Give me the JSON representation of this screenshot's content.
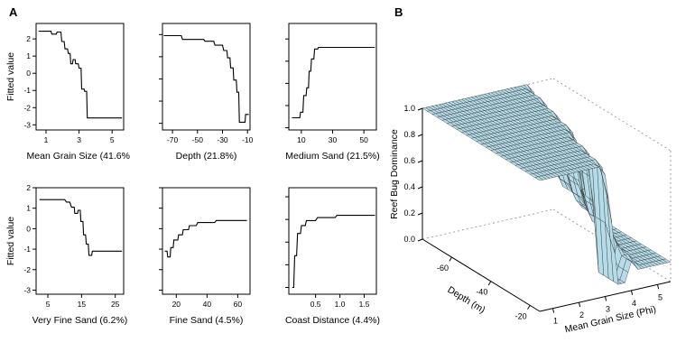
{
  "panel_labels": {
    "a": "A",
    "b": "B"
  },
  "chart_data": {
    "partial_plots": {
      "type": "line",
      "y_axis_title": "Fitted value",
      "plots": [
        {
          "xlabel": "Mean Grain Size (41.6%)",
          "xlim": [
            0.4,
            5.7
          ],
          "xticks": [
            1,
            3,
            5
          ],
          "xtick_labels": [
            "1",
            "3",
            "5"
          ],
          "ylim": [
            -3.3,
            2.9
          ],
          "yticks": [
            -3,
            -2,
            -1,
            0,
            1,
            2
          ],
          "ytick_labels": [
            "-3",
            "-2",
            "-1",
            "0",
            "1",
            "2"
          ],
          "show_y_axis_labels": true,
          "points": [
            [
              0.55,
              2.45
            ],
            [
              1.3,
              2.45
            ],
            [
              1.35,
              2.28
            ],
            [
              1.62,
              2.28
            ],
            [
              1.67,
              2.4
            ],
            [
              1.9,
              2.4
            ],
            [
              1.95,
              1.85
            ],
            [
              2.1,
              1.85
            ],
            [
              2.15,
              1.42
            ],
            [
              2.3,
              1.42
            ],
            [
              2.35,
              1.15
            ],
            [
              2.46,
              1.15
            ],
            [
              2.5,
              0.55
            ],
            [
              2.6,
              0.55
            ],
            [
              2.64,
              0.8
            ],
            [
              2.76,
              0.8
            ],
            [
              2.8,
              0.55
            ],
            [
              2.95,
              0.55
            ],
            [
              3.0,
              0.3
            ],
            [
              3.12,
              0.3
            ],
            [
              3.16,
              -0.92
            ],
            [
              3.3,
              -0.92
            ],
            [
              3.34,
              -1.05
            ],
            [
              3.46,
              -1.05
            ],
            [
              3.5,
              -2.6
            ],
            [
              5.6,
              -2.6
            ]
          ]
        },
        {
          "xlabel": "Depth (21.8%)",
          "xlim": [
            -78,
            -8
          ],
          "xticks": [
            -70,
            -50,
            -30,
            -10
          ],
          "xtick_labels": [
            "-70",
            "-50",
            "-30",
            "-10"
          ],
          "ylim": [
            -3.3,
            1.5
          ],
          "yticks": [
            -3,
            -2,
            -1,
            0,
            1
          ],
          "ytick_labels": [
            "-3",
            "-2",
            "-1",
            "0",
            "1"
          ],
          "show_y_axis_labels": false,
          "points": [
            [
              -77,
              0.95
            ],
            [
              -63,
              0.95
            ],
            [
              -62,
              0.78
            ],
            [
              -45,
              0.78
            ],
            [
              -44,
              0.7
            ],
            [
              -37,
              0.7
            ],
            [
              -36,
              0.52
            ],
            [
              -30,
              0.52
            ],
            [
              -29,
              0.28
            ],
            [
              -26.5,
              0.28
            ],
            [
              -26,
              -0.05
            ],
            [
              -24,
              -0.05
            ],
            [
              -23.5,
              -0.5
            ],
            [
              -21.5,
              -0.5
            ],
            [
              -21,
              -1.05
            ],
            [
              -19,
              -1.05
            ],
            [
              -18.5,
              -1.6
            ],
            [
              -17,
              -1.6
            ],
            [
              -16.5,
              -2.95
            ],
            [
              -12,
              -2.95
            ],
            [
              -11.5,
              -2.6
            ],
            [
              -9,
              -2.6
            ]
          ]
        },
        {
          "xlabel": "Medium Sand (21.5%)",
          "xlim": [
            2,
            58
          ],
          "xticks": [
            10,
            30,
            50
          ],
          "xtick_labels": [
            "10",
            "30",
            "50"
          ],
          "ylim": [
            -3.1,
            1.7
          ],
          "yticks": [
            -3,
            -2,
            -1,
            0,
            1
          ],
          "ytick_labels": [
            "-3",
            "-2",
            "-1",
            "0",
            "1"
          ],
          "show_y_axis_labels": false,
          "points": [
            [
              4,
              -2.55
            ],
            [
              9,
              -2.55
            ],
            [
              9.5,
              -2.3
            ],
            [
              11,
              -2.3
            ],
            [
              11.5,
              -1.55
            ],
            [
              13,
              -1.55
            ],
            [
              13.5,
              -1.2
            ],
            [
              14.6,
              -1.2
            ],
            [
              15,
              -0.45
            ],
            [
              16,
              -0.45
            ],
            [
              16.5,
              0.1
            ],
            [
              18,
              0.1
            ],
            [
              18.5,
              0.55
            ],
            [
              20.5,
              0.55
            ],
            [
              21,
              0.62
            ],
            [
              57,
              0.62
            ]
          ]
        },
        {
          "xlabel": "Very Fine Sand (6.2%)",
          "xlim": [
            1.5,
            27.5
          ],
          "xticks": [
            5,
            15,
            25
          ],
          "xtick_labels": [
            "5",
            "15",
            "25"
          ],
          "ylim": [
            -3.2,
            2.0
          ],
          "yticks": [
            -3,
            -2,
            -1,
            0,
            1,
            2
          ],
          "ytick_labels": [
            "-3",
            "-2",
            "-1",
            "0",
            "1",
            "2"
          ],
          "show_y_axis_labels": true,
          "points": [
            [
              2.5,
              1.42
            ],
            [
              10,
              1.42
            ],
            [
              10.5,
              1.3
            ],
            [
              11.5,
              1.3
            ],
            [
              12,
              1.05
            ],
            [
              12.8,
              1.05
            ],
            [
              13,
              0.75
            ],
            [
              13.8,
              0.75
            ],
            [
              14,
              0.9
            ],
            [
              14.6,
              0.9
            ],
            [
              14.8,
              0.35
            ],
            [
              15.4,
              0.35
            ],
            [
              15.6,
              -0.3
            ],
            [
              16.2,
              -0.3
            ],
            [
              16.4,
              -0.75
            ],
            [
              17,
              -0.75
            ],
            [
              17.2,
              -1.3
            ],
            [
              18,
              -1.3
            ],
            [
              18.2,
              -1.1
            ],
            [
              27,
              -1.1
            ]
          ]
        },
        {
          "xlabel": "Fine Sand (4.5%)",
          "xlim": [
            11,
            68
          ],
          "xticks": [
            20,
            40,
            60
          ],
          "xtick_labels": [
            "20",
            "40",
            "60"
          ],
          "ylim": [
            -3.2,
            2.0
          ],
          "yticks": [
            -3,
            -2,
            -1,
            0,
            1,
            2
          ],
          "ytick_labels": [
            "-3",
            "-2",
            "-1",
            "0",
            "1",
            "2"
          ],
          "show_y_axis_labels": false,
          "points": [
            [
              12.5,
              -1.1
            ],
            [
              14,
              -1.1
            ],
            [
              14.4,
              -1.38
            ],
            [
              16,
              -1.38
            ],
            [
              16.4,
              -0.92
            ],
            [
              18,
              -0.92
            ],
            [
              18.4,
              -0.55
            ],
            [
              21,
              -0.55
            ],
            [
              21.5,
              -0.3
            ],
            [
              24,
              -0.3
            ],
            [
              24.5,
              -0.05
            ],
            [
              28,
              -0.05
            ],
            [
              28.5,
              0.15
            ],
            [
              33,
              0.15
            ],
            [
              34,
              0.3
            ],
            [
              45,
              0.3
            ],
            [
              46,
              0.4
            ],
            [
              66,
              0.4
            ]
          ]
        },
        {
          "xlabel": "Coast Distance (4.4%)",
          "xlim": [
            -0.05,
            1.75
          ],
          "xticks": [
            0.5,
            1.0,
            1.5
          ],
          "xtick_labels": [
            "0.5",
            "1.0",
            "1.5"
          ],
          "ylim": [
            -3.3,
            1.4
          ],
          "yticks": [
            -3,
            -2,
            -1,
            0,
            1
          ],
          "ytick_labels": [
            "-3",
            "-2",
            "-1",
            "0",
            "1"
          ],
          "show_y_axis_labels": false,
          "points": [
            [
              0.02,
              -3.0
            ],
            [
              0.05,
              -3.0
            ],
            [
              0.07,
              -1.6
            ],
            [
              0.11,
              -1.6
            ],
            [
              0.13,
              -0.62
            ],
            [
              0.19,
              -0.62
            ],
            [
              0.21,
              -0.27
            ],
            [
              0.29,
              -0.27
            ],
            [
              0.31,
              -0.05
            ],
            [
              0.5,
              -0.05
            ],
            [
              0.54,
              0.08
            ],
            [
              0.9,
              0.08
            ],
            [
              0.94,
              0.18
            ],
            [
              1.72,
              0.18
            ]
          ]
        }
      ]
    },
    "surface_plot": {
      "type": "surface",
      "zlabel": "Reef Bug Dominance",
      "depth_axis_label": "Depth (m)",
      "grain_axis_label": "Mean Grain Size (Phi)",
      "zlim": [
        0,
        1
      ],
      "z_ticks": [
        0,
        0.2,
        0.4,
        0.6,
        0.8,
        1.0
      ],
      "z_tick_labels": [
        "0.0",
        "0.2",
        "0.4",
        "0.6",
        "0.8",
        "1.0"
      ],
      "depth_ticks": [
        -60,
        -40,
        -20
      ],
      "depth_tick_labels": [
        "-60",
        "-40",
        "-20"
      ],
      "grain_ticks": [
        1,
        2,
        3,
        4,
        5
      ],
      "grain_tick_labels": [
        "1",
        "2",
        "3",
        "4",
        "5"
      ],
      "surface_color": "#b5dce8",
      "mesh_line_color": "#2a2a2a",
      "depths": [
        -75,
        -70,
        -65,
        -60,
        -55,
        -50,
        -45,
        -40,
        -35,
        -30,
        -25,
        -20,
        -15
      ],
      "grains": [
        0.5,
        0.75,
        1,
        1.25,
        1.5,
        1.75,
        2,
        2.25,
        2.5,
        2.75,
        3,
        3.25,
        3.5,
        3.75,
        4,
        4.25,
        4.5,
        4.75,
        5,
        5.25,
        5.5
      ],
      "z": [
        [
          1,
          1,
          1,
          1,
          1,
          1,
          1,
          1,
          1,
          1,
          1,
          1,
          1,
          1,
          1,
          1,
          1,
          0.93,
          0.55,
          0.35,
          0.35
        ],
        [
          1,
          1,
          1,
          1,
          1,
          1,
          1,
          1,
          1,
          1,
          1,
          1,
          1,
          1,
          1,
          1,
          0.93,
          0.55,
          0.55,
          0.35,
          0.22
        ],
        [
          1,
          1,
          1,
          1,
          1,
          1,
          1,
          1,
          1,
          1,
          1,
          1,
          1,
          1,
          1,
          1,
          0.93,
          0.55,
          0.35,
          0.35,
          0.22
        ],
        [
          1,
          1,
          1,
          1,
          1,
          1,
          1,
          1,
          1,
          1,
          1,
          1,
          1,
          1,
          1,
          0.93,
          0.55,
          0.55,
          0.35,
          0.22,
          0.15
        ],
        [
          1,
          1,
          1,
          1,
          1,
          1,
          1,
          1,
          1,
          1,
          1,
          1,
          1,
          1,
          1,
          0.93,
          0.55,
          0.35,
          0.35,
          0.22,
          0.15
        ],
        [
          1,
          1,
          1,
          1,
          1,
          1,
          1,
          1,
          1,
          1,
          1,
          1,
          1,
          1,
          0.93,
          0.55,
          0.55,
          0.35,
          0.22,
          0.15,
          0.15
        ],
        [
          1,
          1,
          1,
          1,
          1,
          1,
          1,
          1,
          1,
          1,
          1,
          1,
          1,
          1,
          0.93,
          0.55,
          0.35,
          0.22,
          0.22,
          0.15,
          0.15
        ],
        [
          1,
          1,
          1,
          1,
          1,
          1,
          1,
          1,
          1,
          1,
          1,
          1,
          1,
          0.93,
          0.55,
          0.35,
          0.35,
          0.22,
          0.15,
          0.15,
          0.15
        ],
        [
          1,
          1,
          1,
          1,
          1,
          1,
          1,
          1,
          1,
          1,
          1,
          1,
          0.93,
          0.55,
          0.55,
          0.35,
          0.22,
          0.15,
          0.15,
          0.15,
          0.15
        ],
        [
          1,
          1,
          1,
          1,
          1,
          1,
          1,
          1,
          1,
          1,
          1,
          1,
          0.93,
          0.55,
          0.35,
          0.35,
          0.22,
          0.15,
          0.15,
          0.15,
          0.15
        ],
        [
          1,
          1,
          1,
          1,
          1,
          1,
          1,
          1,
          1,
          1,
          1,
          0.93,
          0.07,
          0.07,
          0.35,
          0.22,
          0.15,
          0.15,
          0.15,
          0.15,
          0.15
        ],
        [
          1,
          1,
          1,
          1,
          1,
          1,
          1,
          1,
          1,
          1,
          1,
          0.93,
          0.07,
          0.07,
          0.22,
          0.22,
          0.15,
          0.15,
          0.15,
          0.15,
          0.15
        ],
        [
          1,
          1,
          1,
          1,
          1,
          1,
          1,
          1,
          1,
          1,
          0.93,
          0.55,
          0.07,
          0.07,
          0.22,
          0.15,
          0.15,
          0.15,
          0.15,
          0.15,
          0.15
        ]
      ]
    }
  }
}
